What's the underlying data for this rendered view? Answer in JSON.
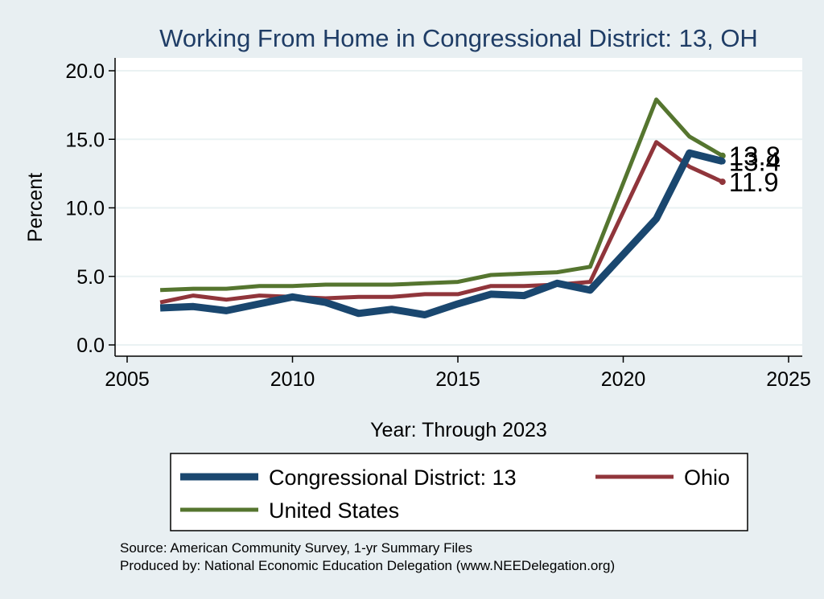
{
  "chart_data": {
    "type": "line",
    "title": "Working From Home in Congressional District: 13, OH",
    "xlabel": "Year: Through 2023",
    "ylabel": "Percent",
    "xlim": [
      2005,
      2025
    ],
    "ylim": [
      0,
      20
    ],
    "x_ticks": [
      "2005",
      "2010",
      "2015",
      "2020",
      "2025"
    ],
    "y_ticks": [
      "0.0",
      "5.0",
      "10.0",
      "15.0",
      "20.0"
    ],
    "grid": true,
    "legend_position": "bottom",
    "x": [
      2006,
      2007,
      2008,
      2009,
      2010,
      2011,
      2012,
      2013,
      2014,
      2015,
      2016,
      2017,
      2018,
      2019,
      2021,
      2022,
      2023
    ],
    "series": [
      {
        "name": "Congressional District: 13",
        "color": "#1a476f",
        "values": [
          2.7,
          2.8,
          2.5,
          3.0,
          3.5,
          3.1,
          2.3,
          2.6,
          2.2,
          3.0,
          3.7,
          3.6,
          4.5,
          4.0,
          9.2,
          14.0,
          13.4
        ],
        "end_label": "13.4"
      },
      {
        "name": "Ohio",
        "color": "#90353b",
        "values": [
          3.1,
          3.6,
          3.3,
          3.6,
          3.5,
          3.4,
          3.5,
          3.5,
          3.7,
          3.7,
          4.3,
          4.3,
          4.4,
          4.6,
          14.8,
          13.0,
          11.9
        ],
        "end_label": "11.9"
      },
      {
        "name": "United States",
        "color": "#55752f",
        "values": [
          4.0,
          4.1,
          4.1,
          4.3,
          4.3,
          4.4,
          4.4,
          4.4,
          4.5,
          4.6,
          5.1,
          5.2,
          5.3,
          5.7,
          17.9,
          15.2,
          13.8
        ],
        "end_label": "13.8"
      }
    ]
  },
  "notes": {
    "source": "Source: American Community Survey, 1-yr Summary Files",
    "producer": "Produced by: National Economic Education Delegation (www.NEEDelegation.org)"
  }
}
